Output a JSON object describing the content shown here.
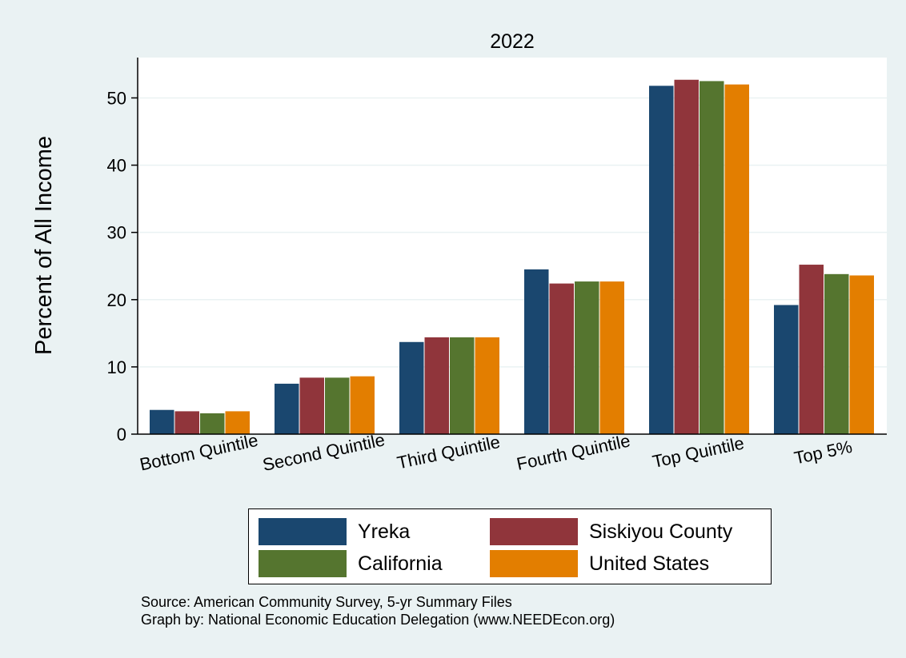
{
  "chart_data": {
    "type": "bar",
    "title": "2022",
    "xlabel": "",
    "ylabel": "Percent of All Income",
    "categories": [
      "Bottom Quintile",
      "Second Quintile",
      "Third Quintile",
      "Fourth Quintile",
      "Top Quintile",
      "Top 5%"
    ],
    "series": [
      {
        "name": "Yreka",
        "color": "#1a476f",
        "values": [
          3.6,
          7.5,
          13.7,
          24.5,
          51.8,
          19.2
        ]
      },
      {
        "name": "Siskiyou County",
        "color": "#90353b",
        "values": [
          3.4,
          8.4,
          14.4,
          22.4,
          52.7,
          25.2
        ]
      },
      {
        "name": "California",
        "color": "#55752f",
        "values": [
          3.1,
          8.4,
          14.4,
          22.7,
          52.5,
          23.8
        ]
      },
      {
        "name": "United States",
        "color": "#e37e00",
        "values": [
          3.4,
          8.6,
          14.4,
          22.7,
          52.0,
          23.6
        ]
      }
    ],
    "ylim": [
      0,
      56
    ],
    "yticks": [
      0,
      10,
      20,
      30,
      40,
      50
    ],
    "grid": true,
    "legend_position": "bottom"
  },
  "footer": {
    "source_line": "Source: American Community Survey, 5-yr Summary Files",
    "graph_by_line": "Graph by: National Economic Education Delegation (www.NEEDEcon.org)"
  }
}
